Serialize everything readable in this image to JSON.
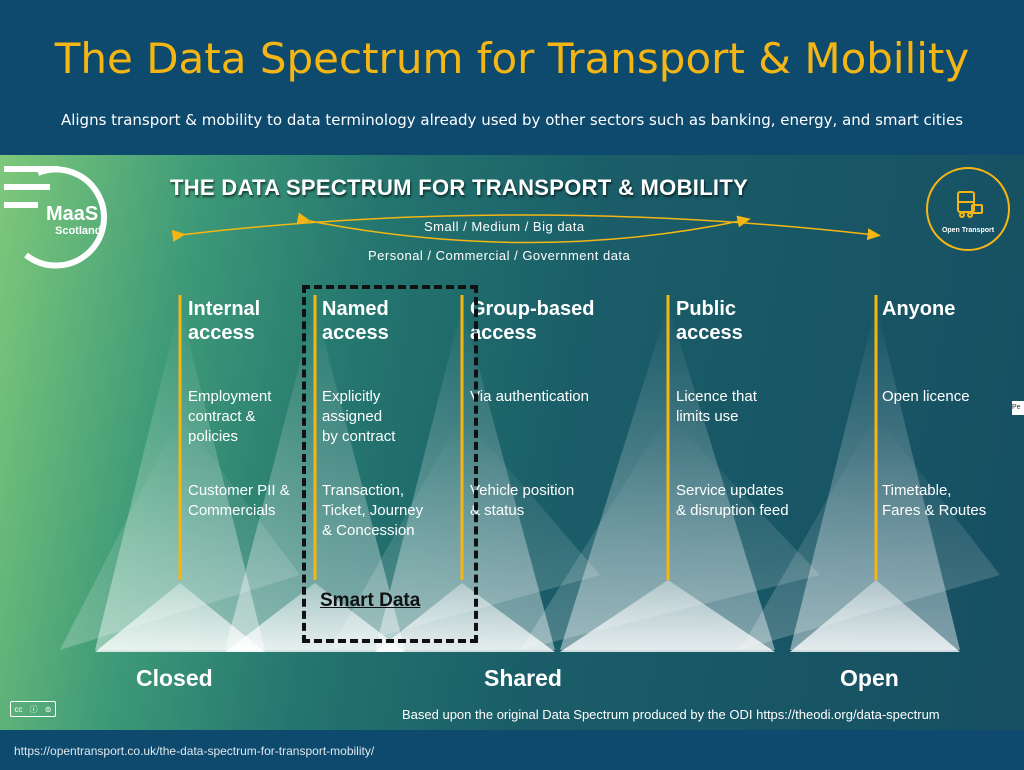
{
  "slide": {
    "title": "The Data Spectrum for Transport & Mobility",
    "subtitle": "Aligns transport & mobility to data terminology already used by other sectors such as banking, energy, and smart cities"
  },
  "diagram": {
    "title": "THE DATA SPECTRUM FOR TRANSPORT & MOBILITY",
    "arrow_top_label": "Small  /  Medium  /  Big data",
    "arrow_bottom_label": "Personal  /  Commercial  /  Government data",
    "columns": [
      {
        "heading": "Internal\naccess",
        "definition": "Employment\ncontract &\npolicies",
        "example": "Customer PII &\nCommercials"
      },
      {
        "heading": "Named\naccess",
        "definition": "Explicitly\nassigned\nby contract",
        "example": "Transaction,\nTicket, Journey\n& Concession"
      },
      {
        "heading": "Group-based\naccess",
        "definition": "Via authentication",
        "example": "Vehicle position\n& status"
      },
      {
        "heading": "Public\naccess",
        "definition": "Licence that\nlimits use",
        "example": "Service updates\n& disruption feed"
      },
      {
        "heading": "Anyone",
        "definition": "Open licence",
        "example": "Timetable,\nFares & Routes"
      }
    ],
    "highlight_label": "Smart Data",
    "scale": {
      "left": "Closed",
      "middle": "Shared",
      "right": "Open"
    },
    "credit": "Based upon the original Data Spectrum produced by the ODI https://theodi.org/data-spectrum",
    "logos": {
      "left_name": "MaaS",
      "left_sub": "Scotland",
      "right_name": "Open Transport"
    },
    "side_fragment": "Pe"
  },
  "footer": {
    "url": "https://opentransport.co.uk/the-data-spectrum-for-transport-mobility/"
  },
  "colors": {
    "accent": "#f5b614",
    "background": "#0e4a6e",
    "text": "#ffffff"
  }
}
